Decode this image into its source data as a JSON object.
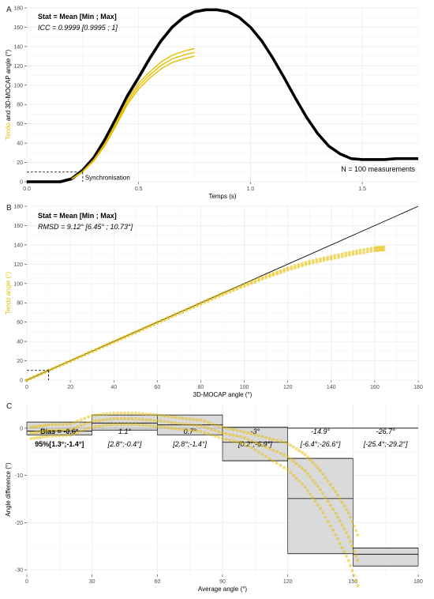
{
  "colors": {
    "gold": "#e5bd00",
    "black": "#000000",
    "grid": "#ebebeb",
    "box": "#d3d3d3"
  },
  "chart_data": [
    {
      "panel": "A",
      "type": "line",
      "stat_header": "Stat = Mean [Min ; Max]",
      "stat_value": "ICC = 0.9999 [0.9995 ; 1]",
      "ylabel_gold": "Tendo",
      "ylabel_rest": " and 3D-MOCAP angle (°)",
      "xlabel": "Temps (s)",
      "xlim": [
        0,
        1.75
      ],
      "ylim": [
        0,
        180
      ],
      "xticks": [
        "0.0",
        "0.5",
        "1.0",
        "1.5"
      ],
      "yticks": [
        "0",
        "20",
        "40",
        "60",
        "80",
        "100",
        "120",
        "140",
        "160",
        "180"
      ],
      "annotation_sync": "Synchronisation",
      "annotation_n": "N = 100 measurements",
      "series": [
        {
          "name": "3D-MOCAP",
          "x": [
            0,
            0.1,
            0.15,
            0.2,
            0.25,
            0.3,
            0.35,
            0.4,
            0.45,
            0.5,
            0.55,
            0.6,
            0.65,
            0.7,
            0.75,
            0.8,
            0.85,
            0.9,
            0.95,
            1.0,
            1.05,
            1.1,
            1.15,
            1.2,
            1.25,
            1.3,
            1.35,
            1.4,
            1.45,
            1.5,
            1.55,
            1.6,
            1.65,
            1.7,
            1.75
          ],
          "y": [
            0,
            0,
            0,
            3,
            12,
            25,
            44,
            66,
            89,
            108,
            128,
            146,
            160,
            170,
            176,
            178,
            178,
            176,
            170,
            160,
            146,
            128,
            108,
            87,
            67,
            50,
            37,
            29,
            24,
            23,
            23,
            23,
            24,
            24,
            24
          ]
        },
        {
          "name": "Tendo",
          "x": [
            0.2,
            0.25,
            0.3,
            0.35,
            0.4,
            0.45,
            0.5,
            0.55,
            0.6,
            0.65,
            0.7,
            0.75
          ],
          "y": [
            3,
            11,
            23,
            40,
            62,
            85,
            102,
            114,
            124,
            131,
            135,
            138
          ]
        }
      ],
      "sync_point": [
        0.25,
        10
      ]
    },
    {
      "panel": "B",
      "type": "scatter",
      "stat_header": "Stat = Mean [Min ; Max]",
      "stat_value": "RMSD = 9.12° [6.45° ; 10.73°]",
      "ylabel": "Tendo angle (°)",
      "xlabel": "3D-MOCAP angle (°)",
      "xlim": [
        0,
        180
      ],
      "ylim": [
        0,
        180
      ],
      "xticks": [
        "0",
        "20",
        "40",
        "60",
        "80",
        "100",
        "120",
        "140",
        "160",
        "180"
      ],
      "yticks": [
        "0",
        "20",
        "40",
        "60",
        "80",
        "100",
        "120",
        "140",
        "160",
        "180"
      ],
      "series": [
        {
          "name": "Tendo vs 3D-MOCAP",
          "x": [
            0,
            10,
            20,
            30,
            40,
            50,
            60,
            70,
            80,
            90,
            100,
            110,
            120,
            130,
            140,
            150,
            160,
            165
          ],
          "y": [
            0,
            10,
            20,
            30,
            40,
            50,
            60,
            70,
            80,
            90,
            99,
            108,
            116,
            123,
            128,
            133,
            137,
            138
          ]
        }
      ],
      "sync_point": [
        10,
        10
      ]
    },
    {
      "panel": "C",
      "type": "bar",
      "ylabel": "Angle difference (°)",
      "xlabel": "Average angle (°)",
      "xlim": [
        0,
        180
      ],
      "ylim": [
        -31,
        5
      ],
      "xticks": [
        "0",
        "30",
        "60",
        "90",
        "120",
        "150",
        "180"
      ],
      "yticks": [
        "-30",
        "-20",
        "-10",
        "0"
      ],
      "bins": [
        {
          "x0": 0,
          "x1": 30,
          "bias": -0.6,
          "lo": -1.4,
          "hi": 1.3,
          "label_bias": "Bias = -0.6°",
          "label_ci": "95%[1.3°;-1.4°]",
          "bold": true
        },
        {
          "x0": 30,
          "x1": 60,
          "bias": 1.1,
          "lo": -0.4,
          "hi": 2.8,
          "label_bias": "1.1°",
          "label_ci": "[2.8°;-0.4°]",
          "bold": false
        },
        {
          "x0": 60,
          "x1": 90,
          "bias": 0.7,
          "lo": -1.4,
          "hi": 2.8,
          "label_bias": "0.7°",
          "label_ci": "[2.8°;-1.4°]",
          "bold": false
        },
        {
          "x0": 90,
          "x1": 120,
          "bias": -3,
          "lo": -6.9,
          "hi": 0.2,
          "label_bias": "-3°",
          "label_ci": "[0.2°;-6.9°]",
          "bold": false
        },
        {
          "x0": 120,
          "x1": 150,
          "bias": -14.9,
          "lo": -26.6,
          "hi": -6.4,
          "label_bias": "-14.9°",
          "label_ci": "[-6.4°;-26.6°]",
          "bold": false
        },
        {
          "x0": 150,
          "x1": 180,
          "bias": -26.7,
          "lo": -29.2,
          "hi": -25.4,
          "label_bias": "-26.7°",
          "label_ci": "[-25.4°;-29.2°]",
          "bold": false
        }
      ],
      "series": [
        {
          "name": "difference",
          "x": [
            2,
            10,
            20,
            30,
            40,
            50,
            60,
            70,
            80,
            90,
            100,
            110,
            120,
            128,
            135,
            142,
            148,
            153
          ],
          "y": [
            -1,
            -0.5,
            -0.3,
            1.5,
            2,
            2,
            1.6,
            1,
            0.5,
            -1,
            -2,
            -4,
            -6,
            -9,
            -13,
            -18,
            -23,
            -29
          ]
        }
      ]
    }
  ]
}
